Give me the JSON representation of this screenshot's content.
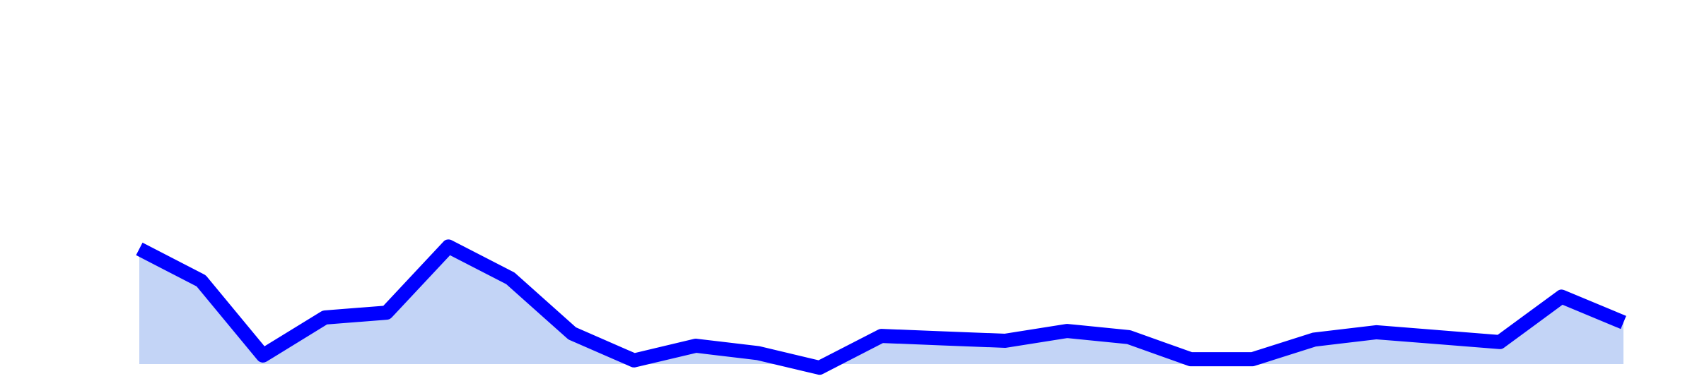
{
  "chart_data": {
    "type": "area",
    "title": "",
    "xlabel": "",
    "ylabel": "",
    "grid": false,
    "x": [
      1,
      2,
      3,
      4,
      5,
      6,
      7,
      8,
      9,
      10,
      11,
      12,
      13,
      14,
      15,
      16,
      17,
      18,
      19,
      20,
      21,
      22,
      23,
      24,
      25
    ],
    "series": [
      {
        "values": [
          0.94,
          0.68,
          0.07,
          0.38,
          0.42,
          0.96,
          0.7,
          0.25,
          0.03,
          0.15,
          0.09,
          -0.03,
          0.23,
          0.21,
          0.19,
          0.27,
          0.22,
          0.04,
          0.04,
          0.2,
          0.26,
          0.22,
          0.18,
          0.55,
          0.34
        ]
      }
    ],
    "ylim": [
      0,
      2.8
    ],
    "colors": {
      "line": "#0000ff",
      "fill": "#c3d4f6"
    }
  }
}
